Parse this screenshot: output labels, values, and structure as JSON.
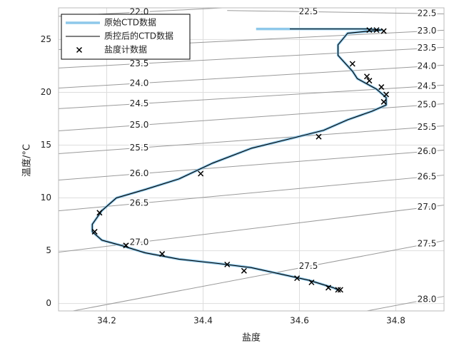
{
  "chart_data": {
    "type": "line",
    "xlabel": "盐度",
    "ylabel": "温度/°C",
    "xlim": [
      34.1,
      34.9
    ],
    "ylim": [
      -0.7,
      28
    ],
    "xticks": [
      34.2,
      34.4,
      34.6,
      34.8
    ],
    "yticks": [
      0,
      5,
      10,
      15,
      20,
      25
    ],
    "grid": true,
    "legend": "upper left",
    "series": [
      {
        "name": "原始CTD数据",
        "color": "#8ec8ea",
        "style": "line",
        "x": [
          34.51,
          34.74,
          34.77,
          34.7,
          34.68,
          34.68,
          34.7,
          34.71,
          34.72,
          34.74,
          34.76,
          34.78,
          34.78,
          34.75,
          34.7,
          34.65,
          34.58,
          34.5,
          34.42,
          34.35,
          34.28,
          34.22,
          34.19,
          34.17,
          34.17,
          34.19,
          34.23,
          34.28,
          34.35,
          34.43,
          34.5,
          34.56,
          34.62,
          34.67,
          34.68
        ],
        "y": [
          26.0,
          26.0,
          25.9,
          25.6,
          24.5,
          23.5,
          22.5,
          22.0,
          21.3,
          20.8,
          20.3,
          19.5,
          18.8,
          18.2,
          17.4,
          16.4,
          15.6,
          14.7,
          13.3,
          11.8,
          10.8,
          10.0,
          8.8,
          7.5,
          6.8,
          6.0,
          5.5,
          4.8,
          4.2,
          3.8,
          3.4,
          2.8,
          2.2,
          1.5,
          1.3
        ]
      },
      {
        "name": "质控后的CTD数据",
        "color": "#000000",
        "style": "line",
        "x": [
          34.58,
          34.74,
          34.77,
          34.7,
          34.68,
          34.68,
          34.7,
          34.71,
          34.72,
          34.74,
          34.76,
          34.78,
          34.78,
          34.75,
          34.7,
          34.65,
          34.58,
          34.5,
          34.42,
          34.35,
          34.28,
          34.22,
          34.19,
          34.17,
          34.17,
          34.19,
          34.23,
          34.28,
          34.35,
          34.43,
          34.5,
          34.56,
          34.62,
          34.67,
          34.68
        ],
        "y": [
          26.0,
          26.0,
          25.9,
          25.6,
          24.5,
          23.5,
          22.5,
          22.0,
          21.3,
          20.8,
          20.3,
          19.5,
          18.8,
          18.2,
          17.4,
          16.4,
          15.6,
          14.7,
          13.3,
          11.8,
          10.8,
          10.0,
          8.8,
          7.5,
          6.8,
          6.0,
          5.5,
          4.8,
          4.2,
          3.8,
          3.4,
          2.8,
          2.2,
          1.5,
          1.3
        ]
      },
      {
        "name": "盐度计数据",
        "color": "#000000",
        "style": "marker",
        "x": [
          34.745,
          34.76,
          34.775,
          34.71,
          34.74,
          34.745,
          34.77,
          34.78,
          34.775,
          34.64,
          34.395,
          34.185,
          34.175,
          34.24,
          34.315,
          34.45,
          34.485,
          34.595,
          34.625,
          34.66,
          34.68,
          34.685
        ],
        "y": [
          25.9,
          25.9,
          25.8,
          22.7,
          21.5,
          21.1,
          20.5,
          19.8,
          19.1,
          15.8,
          12.3,
          8.6,
          6.8,
          5.5,
          4.7,
          3.7,
          3.1,
          2.4,
          2.0,
          1.5,
          1.3,
          1.3
        ]
      }
    ],
    "contour_color": "#9a9a9a",
    "contours": [
      {
        "level": {
          "value": 22,
          "label": "22.0"
        },
        "x": [
          34.1,
          34.44
        ],
        "y": [
          27.2,
          28.0
        ]
      },
      {
        "level": {
          "value": 22.5,
          "label": "22.5"
        },
        "x": [
          34.45,
          34.9
        ],
        "y": [
          27.75,
          27.43
        ]
      },
      {
        "level": {
          "value": 23,
          "label": "23.0"
        },
        "x": [
          34.1,
          34.9
        ],
        "y": [
          24.05,
          25.88
        ]
      },
      {
        "level": {
          "value": 23.5,
          "label": "23.5"
        },
        "x": [
          34.1,
          34.9
        ],
        "y": [
          22.3,
          24.26
        ]
      },
      {
        "level": {
          "value": 24,
          "label": "24.0"
        },
        "x": [
          34.1,
          34.9
        ],
        "y": [
          20.4,
          22.57
        ]
      },
      {
        "level": {
          "value": 24.5,
          "label": "24.5"
        },
        "x": [
          34.1,
          34.9
        ],
        "y": [
          18.45,
          20.68
        ]
      },
      {
        "level": {
          "value": 25,
          "label": "25.0"
        },
        "x": [
          34.1,
          34.9
        ],
        "y": [
          16.35,
          18.92
        ]
      },
      {
        "level": {
          "value": 25.5,
          "label": "25.5"
        },
        "x": [
          34.1,
          34.9
        ],
        "y": [
          14.19,
          16.82
        ]
      },
      {
        "level": {
          "value": 26,
          "label": "26.0"
        },
        "x": [
          34.1,
          34.9
        ],
        "y": [
          11.69,
          14.53
        ]
      },
      {
        "level": {
          "value": 26.5,
          "label": "26.5"
        },
        "x": [
          34.1,
          34.9
        ],
        "y": [
          8.78,
          12.16
        ]
      },
      {
        "level": {
          "value": 27,
          "label": "27.0"
        },
        "x": [
          34.1,
          34.9
        ],
        "y": [
          4.86,
          9.32
        ]
      },
      {
        "level": {
          "value": 27.5,
          "label": "27.5"
        },
        "x": [
          34.13,
          34.9
        ],
        "y": [
          -0.7,
          5.95
        ]
      },
      {
        "level": {
          "value": 28,
          "label": "28.0"
        },
        "x": [
          34.74,
          34.9
        ],
        "y": [
          -0.7,
          0.68
        ]
      }
    ]
  }
}
